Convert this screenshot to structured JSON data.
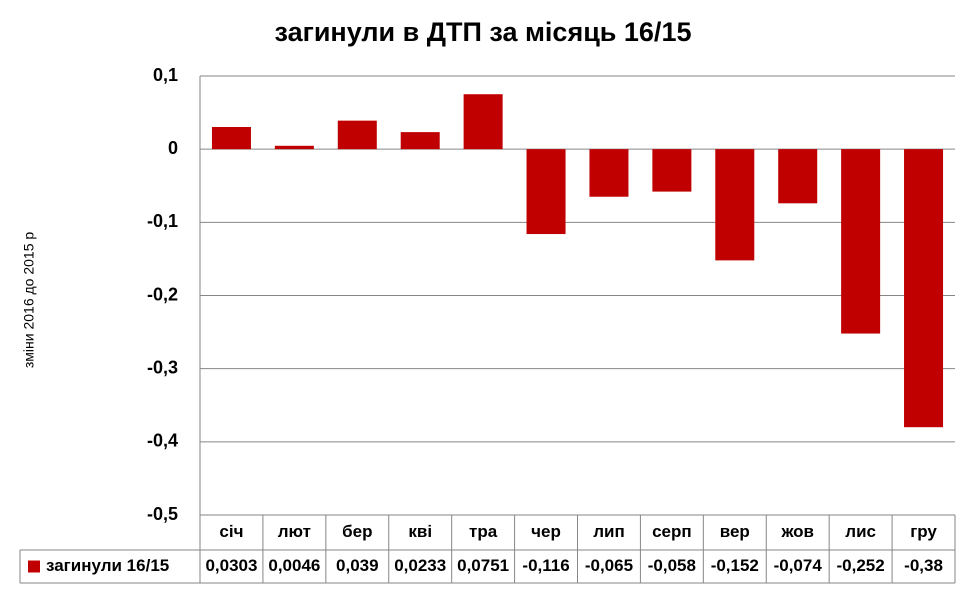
{
  "chart_data": {
    "type": "bar",
    "title": "загинули в ДТП за місяць 16/15",
    "y_label": "зміни 2016 до 2015 р",
    "categories": [
      "січ",
      "лют",
      "бер",
      "кві",
      "тра",
      "чер",
      "лип",
      "серп",
      "вер",
      "жов",
      "лис",
      "гру"
    ],
    "series": [
      {
        "name": "загинули 16/15",
        "color": "#c00000",
        "values": [
          0.0303,
          0.0046,
          0.039,
          0.0233,
          0.0751,
          -0.116,
          -0.065,
          -0.058,
          -0.152,
          -0.074,
          -0.252,
          -0.38
        ],
        "value_labels": [
          "0,0303",
          "0,0046",
          "0,039",
          "0,0233",
          "0,0751",
          "-0,116",
          "-0,065",
          "-0,058",
          "-0,152",
          "-0,074",
          "-0,252",
          "-0,38"
        ]
      }
    ],
    "ylim": [
      -0.5,
      0.1
    ],
    "yticks": [
      {
        "value": 0.1,
        "label": "0,1"
      },
      0,
      {
        "value": -0.1,
        "label": "-0,1"
      },
      {
        "value": -0.2,
        "label": "-0,2"
      },
      {
        "value": -0.3,
        "label": "-0,3"
      },
      {
        "value": -0.4,
        "label": "-0,4"
      },
      {
        "value": -0.5,
        "label": "-0,5"
      }
    ],
    "grid": true,
    "data_table": true
  }
}
